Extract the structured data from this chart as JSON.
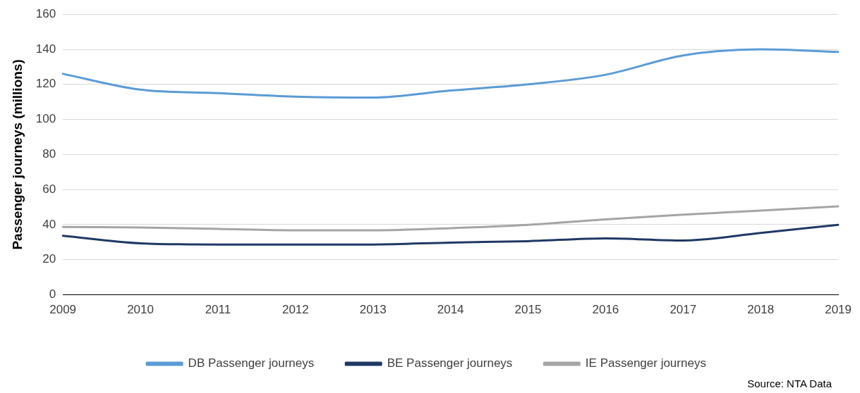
{
  "chart_data": {
    "type": "line",
    "ylabel": "Passenger journeys (millions)",
    "categories": [
      "2009",
      "2010",
      "2011",
      "2012",
      "2013",
      "2014",
      "2015",
      "2016",
      "2017",
      "2018",
      "2019"
    ],
    "series": [
      {
        "name": "DB Passenger journeys",
        "color": "#5b9bd5",
        "values": [
          126,
          117,
          115,
          113,
          112.5,
          116.5,
          120,
          125.5,
          136.5,
          140,
          138.5
        ]
      },
      {
        "name": "BE Passenger journeys",
        "color": "#1f3864",
        "values": [
          33.7,
          29.4,
          28.7,
          28.7,
          28.7,
          29.8,
          30.6,
          32.2,
          31,
          35.3,
          39.9
        ]
      },
      {
        "name": "IE Passenger journeys",
        "color": "#a5a5a5",
        "values": [
          38.7,
          38.4,
          37.6,
          36.8,
          36.8,
          38,
          39.9,
          43,
          45.7,
          48,
          50.4
        ]
      }
    ],
    "ylim": [
      0,
      160
    ],
    "yticks": [
      0,
      20,
      40,
      60,
      80,
      100,
      120,
      140,
      160
    ],
    "grid": "y",
    "legend": "bottom",
    "marker": "none",
    "line_style": "solid",
    "annotations": [
      "Source: NTA Data"
    ]
  }
}
